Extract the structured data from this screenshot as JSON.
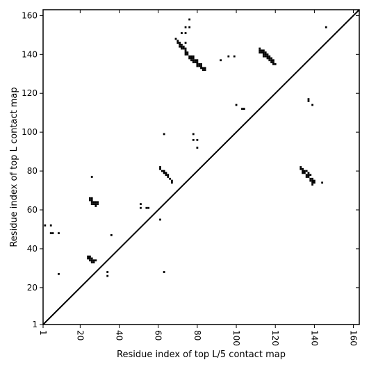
{
  "chart_data": {
    "type": "heatmap",
    "xlabel": "Residue index of top L/5 contact map",
    "ylabel": "Residue index of top L contact map",
    "xlim": [
      1,
      163
    ],
    "ylim": [
      1,
      163
    ],
    "xticks": [
      1,
      20,
      40,
      60,
      80,
      100,
      120,
      140,
      160
    ],
    "yticks": [
      1,
      20,
      40,
      60,
      80,
      100,
      120,
      140,
      160
    ],
    "x_tick_rotation": "vertical",
    "diagonal": {
      "from": [
        1,
        1
      ],
      "to": [
        163,
        163
      ]
    },
    "cell_color": "#000000",
    "contacts": [
      [
        2,
        52
      ],
      [
        5,
        52
      ],
      [
        5,
        48
      ],
      [
        6,
        48
      ],
      [
        9,
        48
      ],
      [
        9,
        27
      ],
      [
        24,
        36
      ],
      [
        24,
        35
      ],
      [
        25,
        36
      ],
      [
        25,
        35
      ],
      [
        25,
        34
      ],
      [
        26,
        35
      ],
      [
        26,
        34
      ],
      [
        26,
        33
      ],
      [
        27,
        34
      ],
      [
        27,
        33
      ],
      [
        28,
        34
      ],
      [
        25,
        66
      ],
      [
        25,
        65
      ],
      [
        26,
        66
      ],
      [
        26,
        65
      ],
      [
        26,
        64
      ],
      [
        26,
        63
      ],
      [
        27,
        64
      ],
      [
        27,
        63
      ],
      [
        28,
        64
      ],
      [
        28,
        63
      ],
      [
        28,
        62
      ],
      [
        29,
        64
      ],
      [
        29,
        63
      ],
      [
        26,
        77
      ],
      [
        34,
        28
      ],
      [
        34,
        26
      ],
      [
        36,
        47
      ],
      [
        51,
        63
      ],
      [
        51,
        61
      ],
      [
        54,
        61
      ],
      [
        55,
        61
      ],
      [
        61,
        82
      ],
      [
        61,
        81
      ],
      [
        62,
        80
      ],
      [
        63,
        80
      ],
      [
        63,
        79
      ],
      [
        64,
        79
      ],
      [
        64,
        78
      ],
      [
        65,
        78
      ],
      [
        65,
        77
      ],
      [
        66,
        76
      ],
      [
        67,
        75
      ],
      [
        67,
        74
      ],
      [
        61,
        55
      ],
      [
        63,
        99
      ],
      [
        63,
        28
      ],
      [
        78,
        99
      ],
      [
        78,
        96
      ],
      [
        80,
        96
      ],
      [
        80,
        92
      ],
      [
        69,
        148
      ],
      [
        70,
        147
      ],
      [
        70,
        146
      ],
      [
        71,
        146
      ],
      [
        71,
        145
      ],
      [
        71,
        144
      ],
      [
        72,
        145
      ],
      [
        72,
        144
      ],
      [
        72,
        143
      ],
      [
        73,
        144
      ],
      [
        73,
        143
      ],
      [
        74,
        143
      ],
      [
        74,
        142
      ],
      [
        74,
        141
      ],
      [
        74,
        140
      ],
      [
        75,
        141
      ],
      [
        75,
        140
      ],
      [
        76,
        139
      ],
      [
        76,
        138
      ],
      [
        77,
        139
      ],
      [
        77,
        138
      ],
      [
        77,
        137
      ],
      [
        78,
        139
      ],
      [
        78,
        138
      ],
      [
        78,
        137
      ],
      [
        78,
        136
      ],
      [
        79,
        137
      ],
      [
        79,
        136
      ],
      [
        80,
        137
      ],
      [
        80,
        136
      ],
      [
        80,
        135
      ],
      [
        80,
        134
      ],
      [
        81,
        135
      ],
      [
        81,
        134
      ],
      [
        82,
        135
      ],
      [
        82,
        134
      ],
      [
        82,
        133
      ],
      [
        83,
        133
      ],
      [
        83,
        132
      ],
      [
        84,
        133
      ],
      [
        84,
        132
      ],
      [
        72,
        151
      ],
      [
        74,
        151
      ],
      [
        74,
        154
      ],
      [
        76,
        154
      ],
      [
        76,
        158
      ],
      [
        74,
        146
      ],
      [
        92,
        137
      ],
      [
        96,
        139
      ],
      [
        99,
        139
      ],
      [
        100,
        114
      ],
      [
        103,
        112
      ],
      [
        104,
        112
      ],
      [
        112,
        143
      ],
      [
        112,
        142
      ],
      [
        112,
        141
      ],
      [
        113,
        142
      ],
      [
        113,
        141
      ],
      [
        114,
        142
      ],
      [
        114,
        141
      ],
      [
        114,
        140
      ],
      [
        114,
        139
      ],
      [
        115,
        141
      ],
      [
        115,
        140
      ],
      [
        115,
        139
      ],
      [
        116,
        140
      ],
      [
        116,
        139
      ],
      [
        116,
        138
      ],
      [
        117,
        139
      ],
      [
        117,
        138
      ],
      [
        117,
        137
      ],
      [
        118,
        138
      ],
      [
        118,
        137
      ],
      [
        118,
        136
      ],
      [
        119,
        137
      ],
      [
        119,
        136
      ],
      [
        119,
        135
      ],
      [
        120,
        135
      ],
      [
        137,
        117
      ],
      [
        137,
        116
      ],
      [
        139,
        114
      ],
      [
        146,
        154
      ],
      [
        133,
        82
      ],
      [
        133,
        81
      ],
      [
        134,
        81
      ],
      [
        134,
        80
      ],
      [
        134,
        79
      ],
      [
        135,
        80
      ],
      [
        135,
        79
      ],
      [
        136,
        80
      ],
      [
        136,
        78
      ],
      [
        136,
        77
      ],
      [
        137,
        79
      ],
      [
        137,
        78
      ],
      [
        137,
        77
      ],
      [
        138,
        78
      ],
      [
        138,
        76
      ],
      [
        138,
        75
      ],
      [
        139,
        76
      ],
      [
        139,
        75
      ],
      [
        139,
        74
      ],
      [
        139,
        73
      ],
      [
        140,
        75
      ],
      [
        140,
        74
      ],
      [
        144,
        74
      ]
    ]
  }
}
